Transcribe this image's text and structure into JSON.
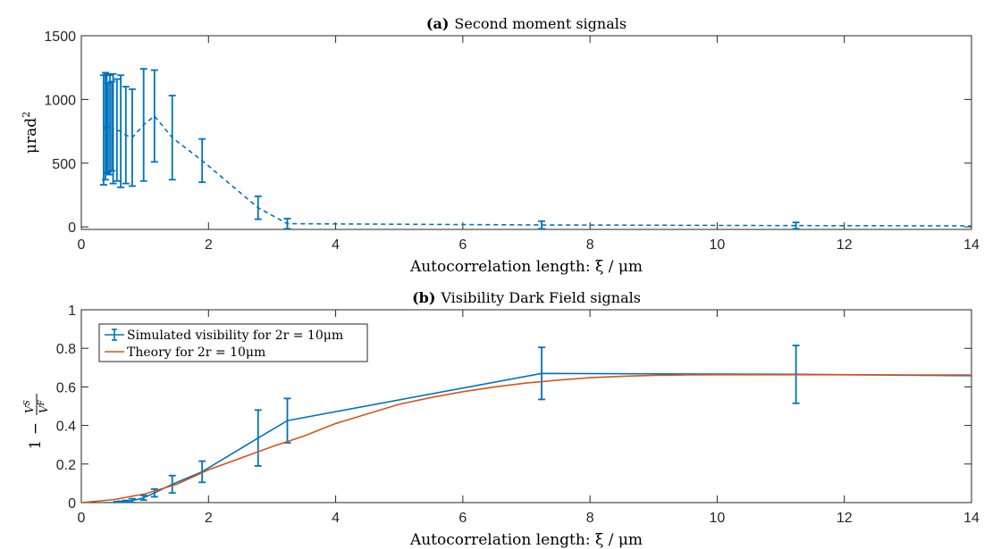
{
  "chart_data": [
    {
      "type": "line",
      "title_bold": "(a)",
      "title": "Second moment signals",
      "xlabel": "Autocorrelation length: ξ / μm",
      "ylabel_main": "μrad",
      "ylabel_sup": "2",
      "xlim": [
        0,
        14
      ],
      "ylim": [
        -20,
        1500
      ],
      "xticks": [
        "0",
        "2",
        "4",
        "6",
        "8",
        "10",
        "12",
        "14"
      ],
      "yticks": [
        "0",
        "500",
        "1000",
        "1500"
      ],
      "grid": false,
      "line_style": "dashed",
      "color": "#0072BD",
      "series": [
        {
          "x": [
            0.35,
            0.38,
            0.4,
            0.42,
            0.45,
            0.48,
            0.5,
            0.56,
            0.62,
            0.7,
            0.8,
            0.98,
            1.15,
            1.43,
            1.9,
            2.78,
            3.24,
            7.24,
            11.24,
            14.0
          ],
          "y": [
            760,
            790,
            810,
            780,
            800,
            790,
            770,
            760,
            750,
            720,
            700,
            800,
            870,
            700,
            520,
            150,
            25,
            15,
            10,
            8
          ],
          "err": [
            430,
            420,
            390,
            350,
            390,
            350,
            430,
            400,
            440,
            380,
            380,
            440,
            360,
            330,
            170,
            90,
            40,
            30,
            25,
            0
          ]
        }
      ]
    },
    {
      "type": "line",
      "title_bold": "(b)",
      "title": "Visibility Dark Field signals",
      "xlabel": "Autocorrelation length: ξ / μm",
      "ylabel": "1 − V^S / V^F",
      "ylabel_parts": [
        "1 −",
        "V",
        "S",
        "V",
        "F"
      ],
      "xlim": [
        0,
        14
      ],
      "ylim": [
        0,
        1
      ],
      "xticks": [
        "0",
        "2",
        "4",
        "6",
        "8",
        "10",
        "12",
        "14"
      ],
      "yticks": [
        "0",
        "0.2",
        "0.4",
        "0.6",
        "0.8",
        "1"
      ],
      "grid": false,
      "legend": {
        "placement": "top-left",
        "entries": [
          "Simulated visibility for 2r = 10μm",
          "Theory for 2r = 10μm"
        ]
      },
      "series": [
        {
          "name": "Simulated visibility for 2r = 10μm",
          "color": "#0072BD",
          "x": [
            0.35,
            0.4,
            0.45,
            0.5,
            0.56,
            0.62,
            0.7,
            0.8,
            0.98,
            1.15,
            1.43,
            1.9,
            2.78,
            3.24,
            7.24,
            11.24,
            14.0
          ],
          "y": [
            0.0,
            0.0,
            0.0,
            0.0,
            0.002,
            0.003,
            0.005,
            0.01,
            0.025,
            0.05,
            0.095,
            0.16,
            0.335,
            0.425,
            0.67,
            0.665,
            0.658
          ],
          "err": [
            0,
            0,
            0,
            0,
            0.003,
            0.004,
            0.006,
            0.01,
            0.012,
            0.02,
            0.045,
            0.055,
            0.145,
            0.115,
            0.135,
            0.15,
            0
          ]
        },
        {
          "name": "Theory for 2r = 10μm",
          "color": "#D95319",
          "x": [
            0,
            0.5,
            1,
            1.5,
            2,
            2.5,
            3,
            3.5,
            4,
            4.5,
            5,
            5.5,
            6,
            6.5,
            7,
            7.5,
            8,
            8.5,
            9,
            9.5,
            10,
            11,
            12,
            13,
            14
          ],
          "y": [
            0,
            0.015,
            0.045,
            0.095,
            0.17,
            0.23,
            0.29,
            0.345,
            0.41,
            0.46,
            0.51,
            0.545,
            0.575,
            0.6,
            0.62,
            0.635,
            0.648,
            0.655,
            0.66,
            0.662,
            0.663,
            0.663,
            0.663,
            0.662,
            0.662
          ]
        }
      ]
    }
  ]
}
